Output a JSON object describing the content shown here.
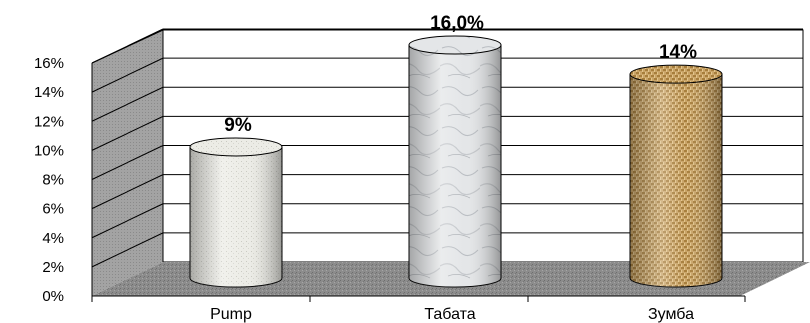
{
  "chart_data": {
    "type": "bar",
    "style": "3d-cylinder",
    "categories": [
      "Pump",
      "Табата",
      "Зумба"
    ],
    "values": [
      9,
      16,
      14
    ],
    "data_labels": [
      "9%",
      "16,0%",
      "14%"
    ],
    "y_ticks": [
      "0%",
      "2%",
      "4%",
      "6%",
      "8%",
      "10%",
      "12%",
      "14%",
      "16%"
    ],
    "ylim": [
      0,
      16
    ],
    "grid": true,
    "legend": "none",
    "title": "",
    "xlabel": "",
    "ylabel": "",
    "colors": {
      "wall": "#9c9c9c",
      "floor": "#8e8e8e",
      "pump": "#e9e9e3",
      "tabata": "#e6e8ea",
      "zumba": "#c9a468"
    }
  }
}
